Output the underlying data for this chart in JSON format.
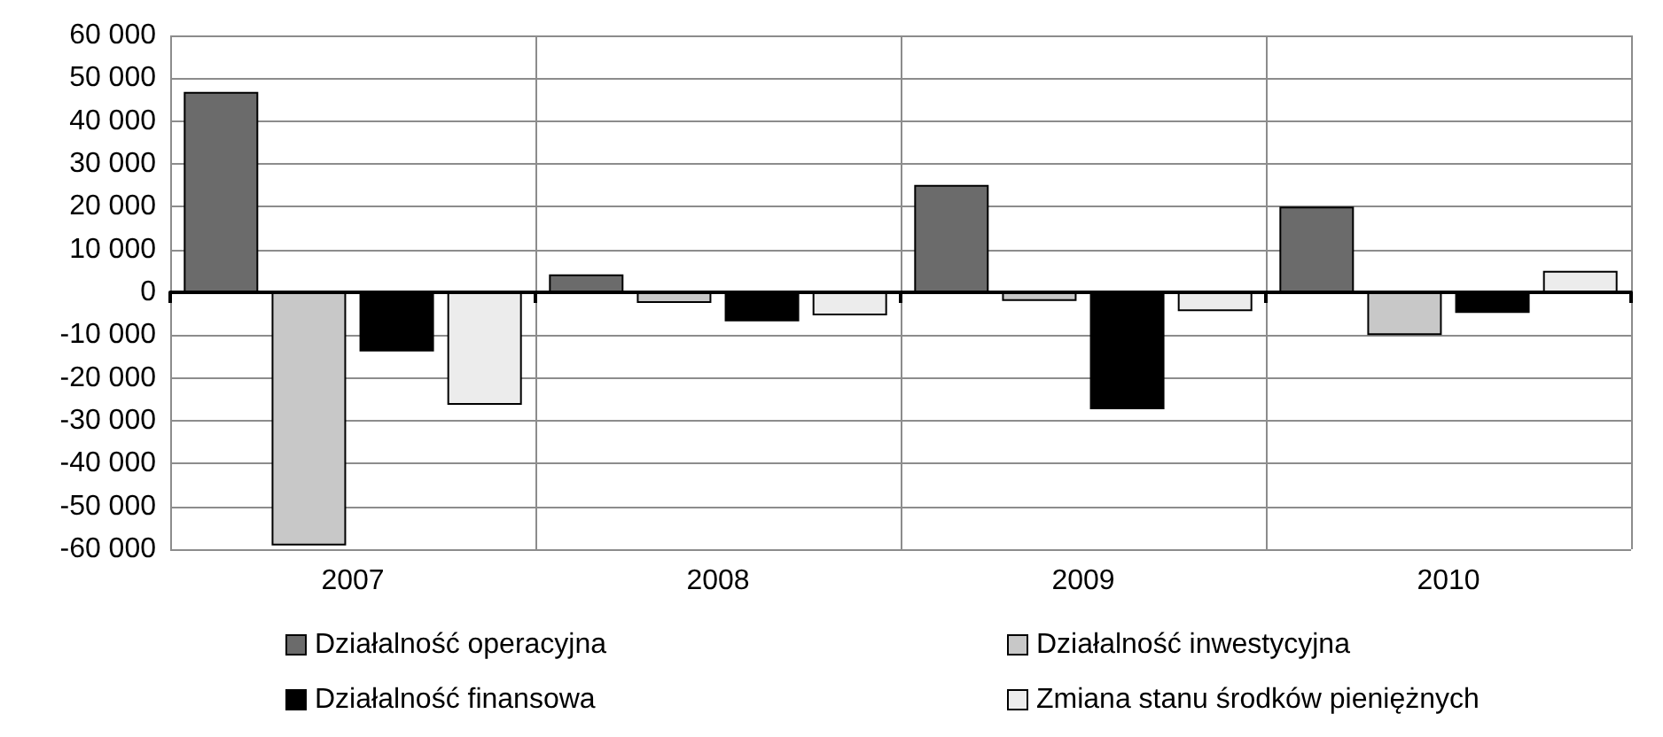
{
  "chart_data": {
    "type": "bar",
    "categories": [
      "2007",
      "2008",
      "2009",
      "2010"
    ],
    "series": [
      {
        "name": "Działalność operacyjna",
        "color": "#6b6b6b",
        "values": [
          46800,
          4200,
          25100,
          20000
        ]
      },
      {
        "name": "Działalność inwestycyjna",
        "color": "#c8c8c8",
        "values": [
          -59100,
          -2500,
          -2000,
          -10000
        ]
      },
      {
        "name": "Działalność finansowa",
        "color": "#000000",
        "values": [
          -13800,
          -6800,
          -27300,
          -4800
        ]
      },
      {
        "name": "Zmiana stanu środków pieniężnych",
        "color": "#ececec",
        "values": [
          -26300,
          -5400,
          -4400,
          5000
        ]
      }
    ],
    "ylim": [
      -60000,
      60000
    ],
    "yticks": [
      {
        "value": -60000,
        "label": "-60 000"
      },
      {
        "value": -50000,
        "label": "-50 000"
      },
      {
        "value": -40000,
        "label": "-40 000"
      },
      {
        "value": -30000,
        "label": "-30 000"
      },
      {
        "value": -20000,
        "label": "-20 000"
      },
      {
        "value": -10000,
        "label": "-10 000"
      },
      0,
      {
        "value": 10000,
        "label": "10 000"
      },
      {
        "value": 20000,
        "label": "20 000"
      },
      {
        "value": 30000,
        "label": "30 000"
      },
      {
        "value": 40000,
        "label": "40 000"
      },
      {
        "value": 50000,
        "label": "50 000"
      },
      {
        "value": 60000,
        "label": "60 000"
      }
    ],
    "grid": true,
    "legend": "bottom"
  }
}
